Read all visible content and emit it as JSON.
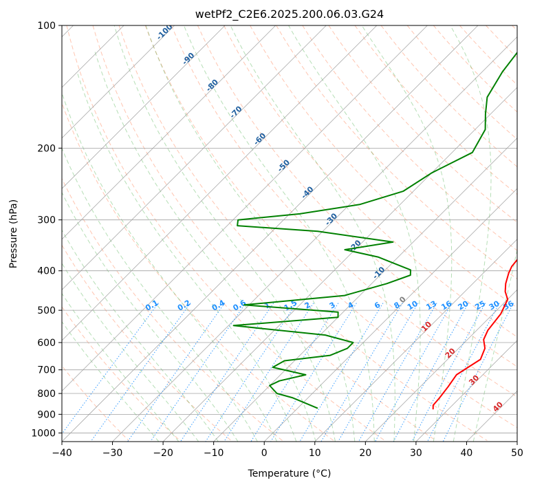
{
  "chart_data": {
    "type": "line",
    "title": "wetPf2_C2E6.2025.200.06.03.G24",
    "xlabel": "Temperature (°C)",
    "ylabel": "Pressure (hPa)",
    "xlim": [
      -40,
      50
    ],
    "ylim": [
      1050,
      100
    ],
    "y_scale": "log",
    "x_ticks": [
      -40,
      -30,
      -20,
      -10,
      0,
      10,
      20,
      30,
      40,
      50
    ],
    "y_ticks": [
      100,
      200,
      300,
      400,
      500,
      600,
      700,
      800,
      900,
      1000
    ],
    "grid": true,
    "skew": "45°",
    "series": [
      {
        "name": "",
        "color": "#ff0000",
        "points": [
          [
            27,
            875
          ],
          [
            26.2,
            855
          ],
          [
            26,
            820
          ],
          [
            25.5,
            770
          ],
          [
            24.8,
            720
          ],
          [
            25.6,
            690
          ],
          [
            26.5,
            660
          ],
          [
            25.2,
            620
          ],
          [
            23.2,
            590
          ],
          [
            22.2,
            560
          ],
          [
            21.5,
            510
          ],
          [
            20,
            470
          ],
          [
            18,
            450
          ],
          [
            16.5,
            430
          ],
          [
            15,
            405
          ],
          [
            14.3,
            390
          ],
          [
            13.8,
            360
          ],
          [
            12.5,
            330
          ],
          [
            11.5,
            305
          ],
          [
            10,
            285
          ],
          [
            6.5,
            260
          ],
          [
            2.5,
            230
          ],
          [
            -2,
            200
          ],
          [
            -6,
            180
          ],
          [
            -9,
            160
          ],
          [
            -12,
            140
          ],
          [
            -13,
            125
          ],
          [
            -13.5,
            115
          ],
          [
            -15,
            108
          ],
          [
            -16,
            104
          ],
          [
            -17,
            100
          ]
        ]
      },
      {
        "name": "",
        "color": "#008000",
        "points": [
          [
            4,
            870
          ],
          [
            -3,
            820
          ],
          [
            -7,
            800
          ],
          [
            -10,
            765
          ],
          [
            -9,
            745
          ],
          [
            -5,
            720
          ],
          [
            -13,
            690
          ],
          [
            -12,
            665
          ],
          [
            -4,
            645
          ],
          [
            -2,
            620
          ],
          [
            -2,
            600
          ],
          [
            -9,
            575
          ],
          [
            -29,
            545
          ],
          [
            -10,
            520
          ],
          [
            -11,
            505
          ],
          [
            -31,
            485
          ],
          [
            -13,
            460
          ],
          [
            -7,
            430
          ],
          [
            -4,
            410
          ],
          [
            -5,
            398
          ],
          [
            -14,
            370
          ],
          [
            -22,
            355
          ],
          [
            -14,
            340
          ],
          [
            -31,
            320
          ],
          [
            -48,
            310
          ],
          [
            -49,
            300
          ],
          [
            -38,
            290
          ],
          [
            -28,
            275
          ],
          [
            -22,
            255
          ],
          [
            -20,
            230
          ],
          [
            -16,
            205
          ],
          [
            -18,
            180
          ],
          [
            -21,
            165
          ],
          [
            -24,
            150
          ],
          [
            -26,
            130
          ],
          [
            -27,
            115
          ],
          [
            -24,
            108
          ],
          [
            -19,
            100
          ]
        ]
      }
    ],
    "isotherm_labels": [
      "-100",
      "-90",
      "-80",
      "-70",
      "-60",
      "-50",
      "-40",
      "-30",
      "-20",
      "-10",
      "0",
      "10",
      "20",
      "30",
      "40"
    ],
    "isotherm_values": [
      -100,
      -90,
      -80,
      -70,
      -60,
      -50,
      -40,
      -30,
      -20,
      -10,
      0,
      10,
      20,
      30,
      40
    ],
    "mixing_ratio_labels": [
      "0.1",
      "0.2",
      "0.4",
      "0.6",
      "1",
      "1.5",
      "2",
      "3",
      "4",
      "6",
      "8",
      "10",
      "13",
      "16",
      "20",
      "25",
      "30",
      "36"
    ],
    "mixing_ratio_values": [
      0.1,
      0.2,
      0.4,
      0.6,
      1,
      1.5,
      2,
      3,
      4,
      6,
      8,
      10,
      13,
      16,
      20,
      25,
      30,
      36
    ],
    "colors": {
      "temperature": "#ff0000",
      "dewpoint": "#008000",
      "isotherm_label_cold": "#1f5f9f",
      "isotherm_label_warm": "#d62728",
      "isotherm_label_zero": "#808080",
      "mixing_ratio": "#1e90ff",
      "dry_adiabat": "#ff7f50",
      "moist_adiabat": "#2ca02c",
      "grid": "#a0a0a0"
    }
  }
}
